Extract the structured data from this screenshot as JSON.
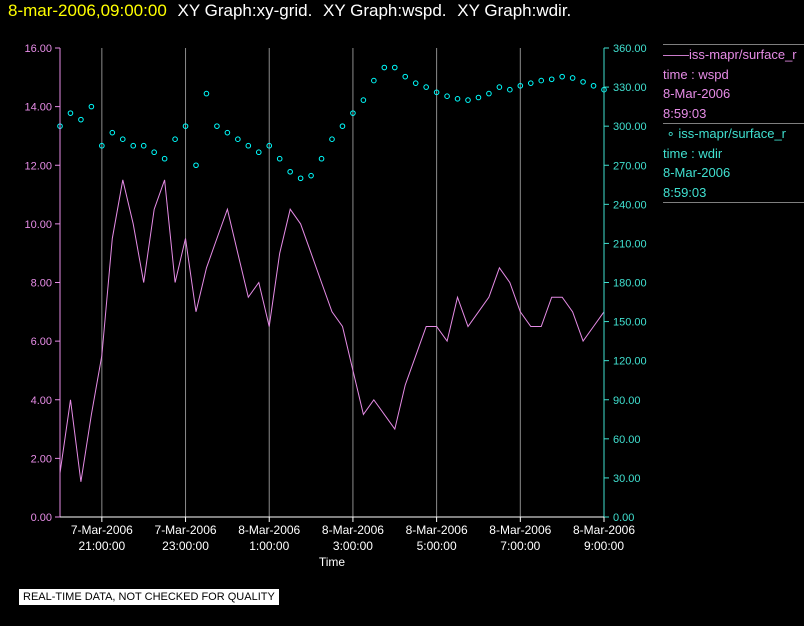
{
  "header": {
    "timestamp": "8-mar-2006,09:00:00",
    "titles": [
      "XY Graph:xy-grid.",
      "XY Graph:wspd.",
      "XY Graph:wdir."
    ]
  },
  "legend": {
    "entries": [
      {
        "marker": "line",
        "name": "iss-mapr/surface_r",
        "lines": [
          "time : wspd",
          "8-Mar-2006",
          "8:59:03"
        ],
        "color": "#e68ce6"
      },
      {
        "marker": "circle",
        "name": "iss-mapr/surface_r",
        "lines": [
          "time : wdir",
          "8-Mar-2006",
          "8:59:03"
        ],
        "color": "#40e0d0"
      }
    ]
  },
  "disclaimer": "REAL-TIME DATA, NOT CHECKED FOR QUALITY",
  "colors": {
    "left_axis": "#e68ce6",
    "right_axis": "#40e0d0",
    "grid": "#8c8c8c",
    "wdir_marker": "#00ffff",
    "wspd_line": "#e68ce6"
  },
  "chart_data": {
    "type": "line",
    "xlabel": "Time",
    "x_range": [
      "2006-03-07 20:00",
      "2006-03-08 09:00"
    ],
    "x_ticks": [
      {
        "t": "2006-03-07 21:00",
        "date": "7-Mar-2006",
        "time": "21:00:00"
      },
      {
        "t": "2006-03-07 23:00",
        "date": "7-Mar-2006",
        "time": "23:00:00"
      },
      {
        "t": "2006-03-08 01:00",
        "date": "8-Mar-2006",
        "time": "1:00:00"
      },
      {
        "t": "2006-03-08 03:00",
        "date": "8-Mar-2006",
        "time": "3:00:00"
      },
      {
        "t": "2006-03-08 05:00",
        "date": "8-Mar-2006",
        "time": "5:00:00"
      },
      {
        "t": "2006-03-08 07:00",
        "date": "8-Mar-2006",
        "time": "7:00:00"
      },
      {
        "t": "2006-03-08 09:00",
        "date": "8-Mar-2006",
        "time": "9:00:00"
      }
    ],
    "y_left": {
      "range": [
        0,
        16
      ],
      "ticks": [
        "0.00",
        "2.00",
        "4.00",
        "6.00",
        "8.00",
        "10.00",
        "12.00",
        "14.00",
        "16.00"
      ]
    },
    "y_right": {
      "range": [
        0,
        360
      ],
      "ticks": [
        "0.00",
        "30.00",
        "60.00",
        "90.00",
        "120.00",
        "150.00",
        "180.00",
        "210.00",
        "240.00",
        "270.00",
        "300.00",
        "330.00",
        "360.00"
      ]
    },
    "series": [
      {
        "axis": "left",
        "style": "line",
        "color": "#e68ce6",
        "x": [
          "2006-03-07 20:00",
          "2006-03-07 20:15",
          "2006-03-07 20:30",
          "2006-03-07 20:45",
          "2006-03-07 21:00",
          "2006-03-07 21:15",
          "2006-03-07 21:30",
          "2006-03-07 21:45",
          "2006-03-07 22:00",
          "2006-03-07 22:15",
          "2006-03-07 22:30",
          "2006-03-07 22:45",
          "2006-03-07 23:00",
          "2006-03-07 23:15",
          "2006-03-07 23:30",
          "2006-03-07 23:45",
          "2006-03-08 00:00",
          "2006-03-08 00:15",
          "2006-03-08 00:30",
          "2006-03-08 00:45",
          "2006-03-08 01:00",
          "2006-03-08 01:15",
          "2006-03-08 01:30",
          "2006-03-08 01:45",
          "2006-03-08 02:00",
          "2006-03-08 02:15",
          "2006-03-08 02:30",
          "2006-03-08 02:45",
          "2006-03-08 03:00",
          "2006-03-08 03:15",
          "2006-03-08 03:30",
          "2006-03-08 03:45",
          "2006-03-08 04:00",
          "2006-03-08 04:15",
          "2006-03-08 04:30",
          "2006-03-08 04:45",
          "2006-03-08 05:00",
          "2006-03-08 05:15",
          "2006-03-08 05:30",
          "2006-03-08 05:45",
          "2006-03-08 06:00",
          "2006-03-08 06:15",
          "2006-03-08 06:30",
          "2006-03-08 06:45",
          "2006-03-08 07:00",
          "2006-03-08 07:15",
          "2006-03-08 07:30",
          "2006-03-08 07:45",
          "2006-03-08 08:00",
          "2006-03-08 08:15",
          "2006-03-08 08:30",
          "2006-03-08 08:45",
          "2006-03-08 09:00"
        ],
        "values": [
          1.5,
          4.0,
          1.2,
          3.5,
          5.5,
          9.5,
          11.5,
          10.0,
          8.0,
          10.5,
          11.5,
          8.0,
          9.5,
          7.0,
          8.5,
          9.5,
          10.5,
          9.0,
          7.5,
          8.0,
          6.5,
          9.0,
          10.5,
          10.0,
          9.0,
          8.0,
          7.0,
          6.5,
          5.0,
          3.5,
          4.0,
          3.5,
          3.0,
          4.5,
          5.5,
          6.5,
          6.5,
          6.0,
          7.5,
          6.5,
          7.0,
          7.5,
          8.5,
          8.0,
          7.0,
          6.5,
          6.5,
          7.5,
          7.5,
          7.0,
          6.0,
          6.5,
          7.0
        ]
      },
      {
        "axis": "right",
        "style": "markers",
        "color": "#00ffff",
        "x": [
          "2006-03-07 20:00",
          "2006-03-07 20:15",
          "2006-03-07 20:30",
          "2006-03-07 20:45",
          "2006-03-07 21:00",
          "2006-03-07 21:15",
          "2006-03-07 21:30",
          "2006-03-07 21:45",
          "2006-03-07 22:00",
          "2006-03-07 22:15",
          "2006-03-07 22:30",
          "2006-03-07 22:45",
          "2006-03-07 23:00",
          "2006-03-07 23:15",
          "2006-03-07 23:30",
          "2006-03-07 23:45",
          "2006-03-08 00:00",
          "2006-03-08 00:15",
          "2006-03-08 00:30",
          "2006-03-08 00:45",
          "2006-03-08 01:00",
          "2006-03-08 01:15",
          "2006-03-08 01:30",
          "2006-03-08 01:45",
          "2006-03-08 02:00",
          "2006-03-08 02:15",
          "2006-03-08 02:30",
          "2006-03-08 02:45",
          "2006-03-08 03:00",
          "2006-03-08 03:15",
          "2006-03-08 03:30",
          "2006-03-08 03:45",
          "2006-03-08 04:00",
          "2006-03-08 04:15",
          "2006-03-08 04:30",
          "2006-03-08 04:45",
          "2006-03-08 05:00",
          "2006-03-08 05:15",
          "2006-03-08 05:30",
          "2006-03-08 05:45",
          "2006-03-08 06:00",
          "2006-03-08 06:15",
          "2006-03-08 06:30",
          "2006-03-08 06:45",
          "2006-03-08 07:00",
          "2006-03-08 07:15",
          "2006-03-08 07:30",
          "2006-03-08 07:45",
          "2006-03-08 08:00",
          "2006-03-08 08:15",
          "2006-03-08 08:30",
          "2006-03-08 08:45",
          "2006-03-08 09:00"
        ],
        "values": [
          300,
          310,
          305,
          315,
          285,
          295,
          290,
          285,
          285,
          280,
          275,
          290,
          300,
          270,
          325,
          300,
          295,
          290,
          285,
          280,
          285,
          275,
          265,
          260,
          262,
          275,
          290,
          300,
          310,
          320,
          335,
          345,
          345,
          338,
          333,
          330,
          326,
          323,
          321,
          320,
          322,
          325,
          330,
          328,
          331,
          333,
          335,
          336,
          338,
          337,
          334,
          331,
          328
        ]
      }
    ]
  }
}
